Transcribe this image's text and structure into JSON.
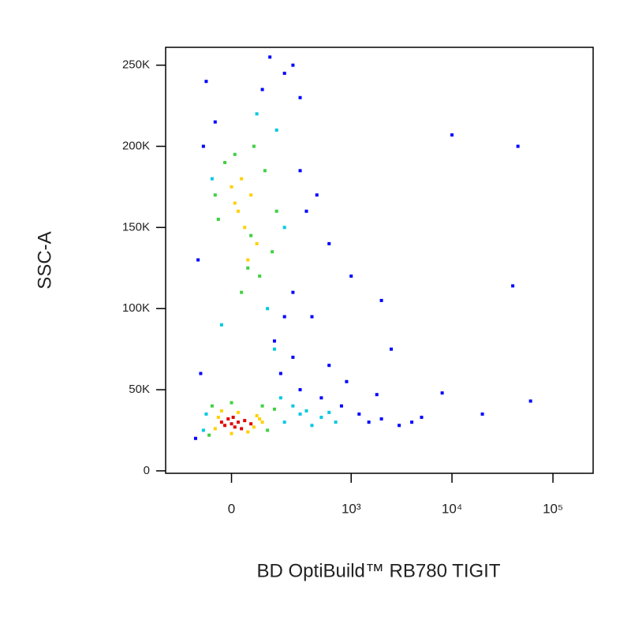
{
  "chart_data": {
    "type": "scatter",
    "x_label": "BD OptiBuild™ RB780 TIGIT",
    "y_label": "SSC-A",
    "x_scale": "biexponential",
    "xlim": [
      -280,
      250000
    ],
    "xticks": [
      0,
      {
        "value": 1000,
        "label": "10³"
      },
      {
        "value": 10000,
        "label": "10⁴"
      },
      {
        "value": 100000,
        "label": "10⁵"
      }
    ],
    "ylim": [
      -1500,
      261000
    ],
    "yticks": [
      0,
      {
        "value": 50000,
        "label": "50K"
      },
      {
        "value": 100000,
        "label": "100K"
      },
      {
        "value": 150000,
        "label": "150K"
      },
      {
        "value": 200000,
        "label": "200K"
      },
      {
        "value": 250000,
        "label": "250K"
      }
    ],
    "grid": false,
    "series": [
      {
        "color": "#0000ff",
        "x": [
          -120,
          -100,
          300,
          500,
          800,
          1200,
          1500,
          2000,
          3000,
          4000,
          5000,
          250,
          -80,
          200,
          300,
          -50,
          100,
          150,
          250,
          400,
          600,
          1000,
          2000,
          8000,
          20000,
          60000,
          40000,
          2500,
          350,
          -110,
          180,
          250,
          -90,
          130,
          300,
          200,
          900,
          1800,
          600,
          450,
          10000,
          45000
        ],
        "y": [
          20000,
          60000,
          50000,
          45000,
          40000,
          35000,
          30000,
          32000,
          28000,
          30000,
          33000,
          250000,
          240000,
          245000,
          230000,
          215000,
          235000,
          80000,
          70000,
          95000,
          140000,
          120000,
          105000,
          48000,
          35000,
          43000,
          114000,
          75000,
          160000,
          130000,
          60000,
          110000,
          200000,
          255000,
          185000,
          95000,
          55000,
          47000,
          65000,
          170000,
          207000,
          200000
        ]
      },
      {
        "color": "#00c8e0",
        "x": [
          200,
          300,
          400,
          -80,
          180,
          250,
          -90,
          120,
          160,
          -60,
          200,
          80,
          -30,
          500,
          700,
          350,
          600,
          150
        ],
        "y": [
          30000,
          35000,
          28000,
          35000,
          45000,
          40000,
          25000,
          100000,
          210000,
          180000,
          150000,
          220000,
          90000,
          33000,
          30000,
          37000,
          36000,
          75000
        ]
      },
      {
        "color": "#40d040",
        "x": [
          -60,
          120,
          150,
          -70,
          0,
          100,
          60,
          -40,
          140,
          110,
          -20,
          90,
          70,
          30,
          -50,
          160,
          10,
          50
        ],
        "y": [
          40000,
          25000,
          38000,
          22000,
          42000,
          40000,
          145000,
          155000,
          135000,
          185000,
          190000,
          120000,
          200000,
          110000,
          170000,
          160000,
          195000,
          125000
        ]
      },
      {
        "color": "#ffd000",
        "x": [
          -40,
          70,
          80,
          -50,
          20,
          50,
          100,
          -30,
          90,
          0,
          20,
          60,
          40,
          0,
          80,
          30,
          50,
          10
        ],
        "y": [
          33000,
          27000,
          34000,
          26000,
          36000,
          24000,
          30000,
          37000,
          32000,
          23000,
          160000,
          170000,
          150000,
          175000,
          140000,
          180000,
          130000,
          165000
        ]
      },
      {
        "color": "#e00000",
        "x": [
          0,
          20,
          -20,
          40,
          10,
          -10,
          30,
          60,
          -30,
          5
        ],
        "y": [
          29000,
          30000,
          28000,
          31000,
          27000,
          32000,
          26000,
          29000,
          30000,
          33000
        ]
      }
    ]
  }
}
